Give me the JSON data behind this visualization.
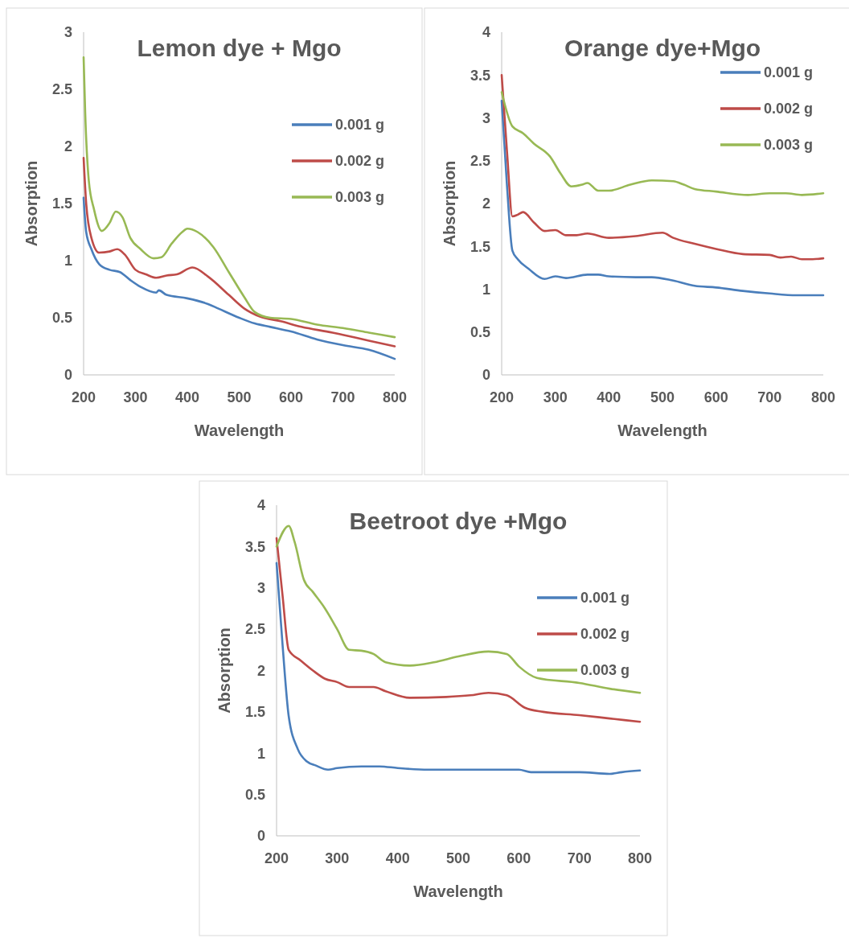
{
  "chart_data": [
    {
      "type": "line",
      "title": "Lemon dye + Mgo",
      "xlabel": "Wavelength",
      "ylabel": "Absorption",
      "xlim": [
        200,
        800
      ],
      "xticks": [
        200,
        300,
        400,
        500,
        600,
        700,
        800
      ],
      "ylim": [
        0,
        3
      ],
      "yticks": [
        0,
        0.5,
        1,
        1.5,
        2,
        2.5,
        3
      ],
      "grid": false,
      "legend": "right",
      "marker": "none",
      "line_style": "solid",
      "series": [
        {
          "name": "0.001 g",
          "color": "#4a7ebb",
          "x": [
            200,
            205,
            215,
            230,
            250,
            270,
            290,
            310,
            340,
            345,
            360,
            400,
            440,
            460,
            500,
            530,
            560,
            600,
            650,
            700,
            750,
            800
          ],
          "values": [
            1.55,
            1.25,
            1.1,
            0.97,
            0.92,
            0.9,
            0.83,
            0.77,
            0.72,
            0.74,
            0.7,
            0.67,
            0.62,
            0.58,
            0.5,
            0.45,
            0.42,
            0.38,
            0.31,
            0.26,
            0.22,
            0.14
          ]
        },
        {
          "name": "0.002 g",
          "color": "#be4b48",
          "x": [
            200,
            205,
            215,
            230,
            250,
            265,
            280,
            300,
            320,
            340,
            360,
            380,
            410,
            440,
            480,
            510,
            540,
            580,
            620,
            680,
            700,
            750,
            800
          ],
          "values": [
            1.9,
            1.5,
            1.2,
            1.07,
            1.08,
            1.1,
            1.05,
            0.92,
            0.88,
            0.85,
            0.87,
            0.88,
            0.94,
            0.86,
            0.7,
            0.58,
            0.51,
            0.47,
            0.42,
            0.37,
            0.35,
            0.3,
            0.25
          ]
        },
        {
          "name": "0.003 g",
          "color": "#98b954",
          "x": [
            200,
            203,
            210,
            220,
            235,
            250,
            262,
            275,
            290,
            310,
            335,
            350,
            370,
            390,
            400,
            420,
            450,
            480,
            510,
            530,
            560,
            600,
            650,
            700,
            750,
            800
          ],
          "values": [
            2.78,
            2.3,
            1.7,
            1.45,
            1.26,
            1.33,
            1.43,
            1.38,
            1.2,
            1.1,
            1.02,
            1.03,
            1.15,
            1.25,
            1.28,
            1.25,
            1.12,
            0.9,
            0.68,
            0.55,
            0.5,
            0.49,
            0.44,
            0.41,
            0.37,
            0.33
          ]
        }
      ]
    },
    {
      "type": "line",
      "title": "Orange dye+Mgo",
      "xlabel": "Wavelength",
      "ylabel": "Absorption",
      "xlim": [
        200,
        800
      ],
      "xticks": [
        200,
        300,
        400,
        500,
        600,
        700,
        800
      ],
      "ylim": [
        0,
        4
      ],
      "yticks": [
        0,
        0.5,
        1,
        1.5,
        2,
        2.5,
        3,
        3.5,
        4
      ],
      "grid": false,
      "legend": "top right",
      "marker": "none",
      "line_style": "solid",
      "series": [
        {
          "name": "0.001 g",
          "color": "#4a7ebb",
          "x": [
            200,
            210,
            220,
            230,
            250,
            280,
            300,
            320,
            360,
            380,
            400,
            450,
            480,
            520,
            560,
            600,
            650,
            700,
            750,
            800
          ],
          "values": [
            3.2,
            2.2,
            1.45,
            1.35,
            1.24,
            1.12,
            1.15,
            1.13,
            1.17,
            1.17,
            1.15,
            1.14,
            1.14,
            1.1,
            1.04,
            1.02,
            0.98,
            0.95,
            0.93,
            0.93
          ]
        },
        {
          "name": "0.002 g",
          "color": "#be4b48",
          "x": [
            200,
            210,
            220,
            230,
            240,
            260,
            280,
            300,
            320,
            340,
            360,
            400,
            450,
            500,
            520,
            560,
            600,
            650,
            700,
            720,
            740,
            760,
            780,
            800
          ],
          "values": [
            3.5,
            2.6,
            1.85,
            1.87,
            1.9,
            1.78,
            1.68,
            1.69,
            1.63,
            1.63,
            1.65,
            1.6,
            1.62,
            1.66,
            1.6,
            1.53,
            1.47,
            1.41,
            1.4,
            1.37,
            1.38,
            1.35,
            1.35,
            1.36
          ]
        },
        {
          "name": "0.003 g",
          "color": "#98b954",
          "x": [
            200,
            220,
            240,
            260,
            290,
            310,
            330,
            350,
            360,
            380,
            400,
            440,
            480,
            520,
            540,
            560,
            600,
            660,
            700,
            730,
            760,
            800
          ],
          "values": [
            3.3,
            2.9,
            2.82,
            2.7,
            2.55,
            2.35,
            2.2,
            2.22,
            2.24,
            2.15,
            2.15,
            2.22,
            2.27,
            2.26,
            2.22,
            2.17,
            2.14,
            2.1,
            2.12,
            2.12,
            2.1,
            2.12
          ]
        }
      ]
    },
    {
      "type": "line",
      "title": "Beetroot dye +Mgo",
      "xlabel": "Wavelength",
      "ylabel": "Absorption",
      "xlim": [
        200,
        800
      ],
      "xticks": [
        200,
        300,
        400,
        500,
        600,
        700,
        800
      ],
      "ylim": [
        0,
        4
      ],
      "yticks": [
        0,
        0.5,
        1,
        1.5,
        2,
        2.5,
        3,
        3.5,
        4
      ],
      "grid": false,
      "legend": "right",
      "marker": "none",
      "line_style": "solid",
      "series": [
        {
          "name": "0.001 g",
          "color": "#4a7ebb",
          "x": [
            200,
            210,
            220,
            235,
            250,
            265,
            285,
            300,
            340,
            370,
            400,
            450,
            500,
            550,
            600,
            620,
            700,
            750,
            770,
            800
          ],
          "values": [
            3.3,
            2.3,
            1.45,
            1.05,
            0.9,
            0.85,
            0.8,
            0.82,
            0.84,
            0.84,
            0.82,
            0.8,
            0.8,
            0.8,
            0.8,
            0.77,
            0.77,
            0.75,
            0.77,
            0.79
          ]
        },
        {
          "name": "0.002 g",
          "color": "#be4b48",
          "x": [
            200,
            210,
            220,
            240,
            260,
            280,
            300,
            320,
            360,
            380,
            420,
            480,
            520,
            550,
            580,
            610,
            640,
            700,
            750,
            800
          ],
          "values": [
            3.6,
            2.9,
            2.25,
            2.12,
            2.0,
            1.9,
            1.86,
            1.8,
            1.8,
            1.75,
            1.67,
            1.68,
            1.7,
            1.73,
            1.7,
            1.55,
            1.5,
            1.46,
            1.42,
            1.38
          ]
        },
        {
          "name": "0.003 g",
          "color": "#98b954",
          "x": [
            200,
            220,
            230,
            245,
            260,
            280,
            300,
            320,
            340,
            360,
            380,
            420,
            460,
            500,
            550,
            580,
            600,
            630,
            700,
            750,
            800
          ],
          "values": [
            3.5,
            3.75,
            3.55,
            3.1,
            2.95,
            2.75,
            2.5,
            2.25,
            2.24,
            2.2,
            2.1,
            2.06,
            2.1,
            2.17,
            2.23,
            2.2,
            2.05,
            1.91,
            1.85,
            1.78,
            1.73
          ]
        }
      ]
    }
  ]
}
